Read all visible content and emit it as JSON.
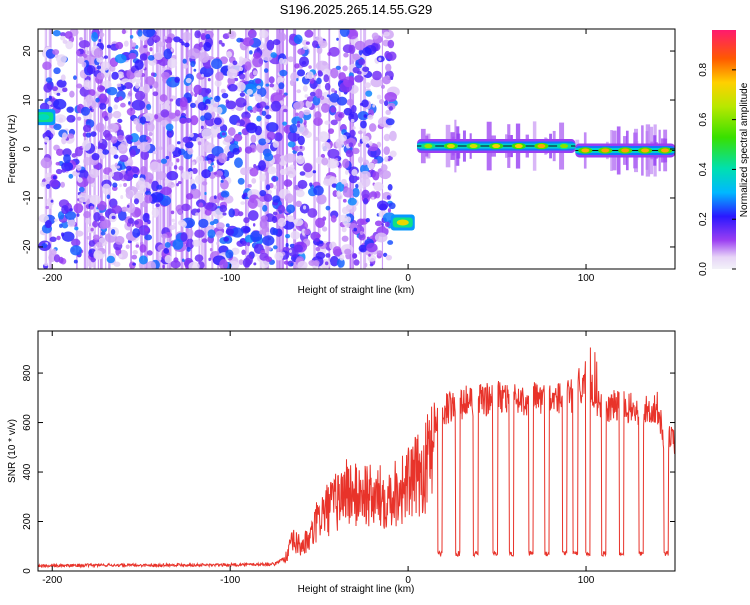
{
  "title": "S196.2025.265.14.55.G29",
  "colorbar": {
    "label": "Normalized spectral amplitude",
    "ticks": [
      "0.0",
      "0.2",
      "0.4",
      "0.6",
      "0.8"
    ],
    "tick_values": [
      0.0,
      0.2,
      0.4,
      0.6,
      0.8
    ],
    "range": [
      0,
      0.96
    ]
  },
  "chart_data": [
    {
      "type": "heatmap",
      "title": "S196.2025.265.14.55.G29",
      "xlabel": "Height of straight line (km)",
      "ylabel": "Frequency (Hz)",
      "xlim": [
        -208,
        150
      ],
      "ylim": [
        -24.5,
        24.5
      ],
      "xticks": [
        -200,
        -100,
        0,
        100
      ],
      "xtick_labels": [
        "-200",
        "-100",
        "0",
        "100"
      ],
      "yticks": [
        -20,
        -10,
        0,
        10,
        20
      ],
      "ytick_labels": [
        "-20",
        "-10",
        "0",
        "10",
        "20"
      ],
      "features": [
        {
          "name": "noise-field",
          "x_range": [
            -205,
            -8
          ],
          "frequency_range": [
            -24,
            24
          ],
          "amplitude": 0.25
        },
        {
          "name": "early-tone",
          "x": -205,
          "frequency": 6.5,
          "amplitude": 0.4
        },
        {
          "name": "tone-jump",
          "x": -3,
          "frequency": -15,
          "amplitude": 0.75
        },
        {
          "name": "carrier-segment-1",
          "x_range": [
            5,
            94
          ],
          "frequency": 0.6,
          "amplitude": 0.8
        },
        {
          "name": "carrier-segment-2",
          "x_range": [
            94,
            150
          ],
          "frequency": -0.3,
          "amplitude": 0.8
        }
      ]
    },
    {
      "type": "line",
      "xlabel": "Height of straight line (km)",
      "ylabel": "SNR (10 * v/v)",
      "xlim": [
        -208,
        150
      ],
      "ylim": [
        0,
        970
      ],
      "xticks": [
        -200,
        -100,
        0,
        100
      ],
      "xtick_labels": [
        "-200",
        "-100",
        "0",
        "100"
      ],
      "yticks": [
        0,
        200,
        400,
        600,
        800
      ],
      "ytick_labels": [
        "0",
        "200",
        "400",
        "600",
        "800"
      ],
      "series": [
        {
          "name": "SNR",
          "color": "#e8332a",
          "x": [
            -208,
            -190,
            -170,
            -150,
            -130,
            -110,
            -90,
            -75,
            -68,
            -65,
            -60,
            -55,
            -50,
            -45,
            -40,
            -35,
            -30,
            -25,
            -20,
            -15,
            -10,
            -5,
            0,
            5,
            10,
            12,
            15,
            20,
            30,
            40,
            50,
            60,
            70,
            80,
            90,
            95,
            100,
            105,
            110,
            120,
            130,
            140,
            145,
            148,
            150
          ],
          "values": [
            20,
            22,
            24,
            23,
            25,
            24,
            26,
            28,
            60,
            120,
            100,
            130,
            220,
            250,
            280,
            330,
            300,
            320,
            290,
            300,
            310,
            330,
            350,
            380,
            420,
            480,
            600,
            650,
            680,
            690,
            700,
            690,
            700,
            690,
            710,
            700,
            780,
            700,
            660,
            670,
            640,
            660,
            500,
            550,
            520
          ],
          "dropouts_x": [
            18,
            28,
            38,
            49,
            58,
            69,
            78,
            88,
            94,
            101,
            110,
            120,
            131,
            145
          ],
          "dropout_level": 60
        }
      ]
    }
  ]
}
